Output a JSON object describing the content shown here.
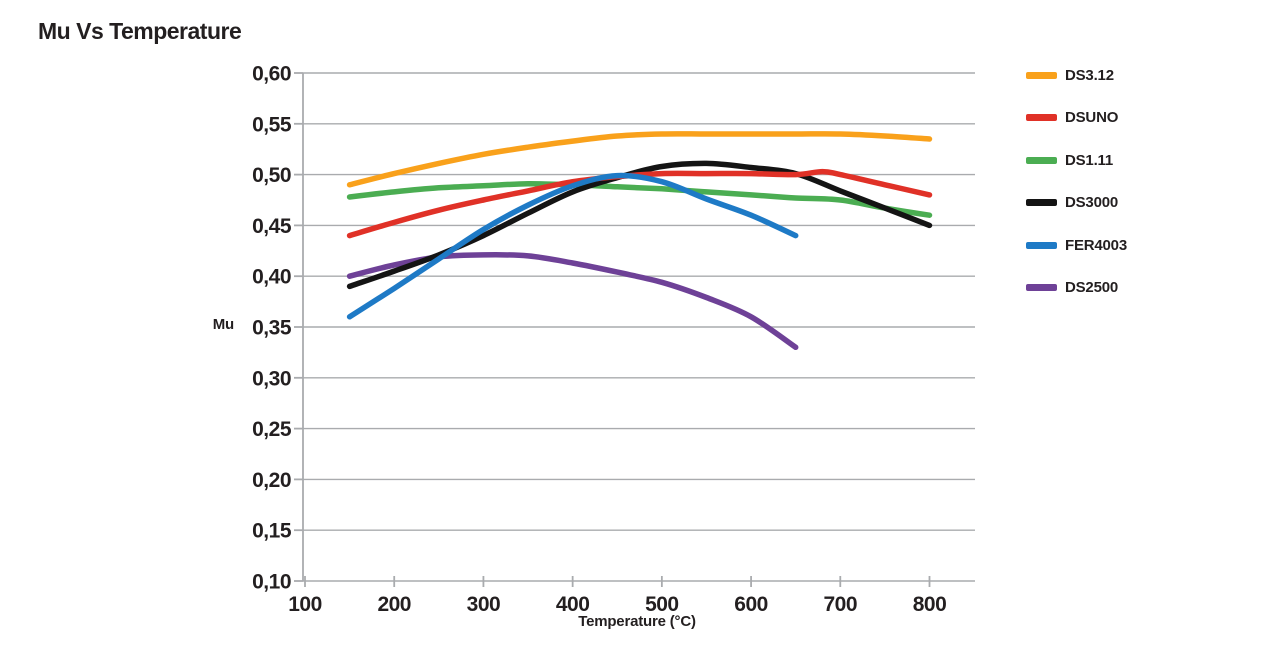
{
  "page": {
    "title": "Mu Vs Temperature"
  },
  "chart_data": {
    "type": "line",
    "title": "Mu Vs Temperature",
    "xlabel": "Temperature (°C)",
    "ylabel": "Mu",
    "xlim": [
      100,
      850
    ],
    "ylim": [
      0.1,
      0.6
    ],
    "grid": true,
    "legend_position": "right",
    "decimal_separator": ",",
    "x_ticks": [
      100,
      200,
      300,
      400,
      500,
      600,
      700,
      800
    ],
    "x_tick_labels": [
      "100",
      "200",
      "300",
      "400",
      "500",
      "600",
      "700",
      "800"
    ],
    "y_ticks": [
      0.6,
      0.55,
      0.5,
      0.45,
      0.4,
      0.35,
      0.3,
      0.25,
      0.2,
      0.15,
      0.1
    ],
    "y_tick_labels": [
      "0,60",
      "0,55",
      "0,50",
      "0,45",
      "0,40",
      "0,35",
      "0,30",
      "0,25",
      "0,20",
      "0,15",
      "0,10"
    ],
    "series": [
      {
        "name": "DS3.12",
        "color": "#F9A11B",
        "z": 1,
        "x": [
          150,
          200,
          250,
          300,
          350,
          400,
          450,
          500,
          550,
          600,
          650,
          700,
          750,
          800
        ],
        "y": [
          0.49,
          0.501,
          0.511,
          0.52,
          0.527,
          0.533,
          0.538,
          0.54,
          0.54,
          0.54,
          0.54,
          0.54,
          0.538,
          0.535
        ]
      },
      {
        "name": "DSUNO",
        "color": "#E03127",
        "z": 5,
        "x": [
          150,
          200,
          250,
          300,
          350,
          400,
          450,
          500,
          550,
          600,
          650,
          680,
          700,
          750,
          800
        ],
        "y": [
          0.44,
          0.453,
          0.465,
          0.475,
          0.484,
          0.493,
          0.498,
          0.501,
          0.501,
          0.501,
          0.5,
          0.503,
          0.5,
          0.49,
          0.48
        ]
      },
      {
        "name": "DS1.11",
        "color": "#4BAD52",
        "z": 2,
        "x": [
          150,
          200,
          250,
          300,
          350,
          400,
          450,
          500,
          550,
          600,
          650,
          700,
          750,
          800
        ],
        "y": [
          0.478,
          0.483,
          0.487,
          0.489,
          0.491,
          0.49,
          0.488,
          0.486,
          0.483,
          0.48,
          0.477,
          0.475,
          0.467,
          0.46
        ]
      },
      {
        "name": "DS3000",
        "color": "#141414",
        "z": 4,
        "x": [
          150,
          200,
          250,
          300,
          350,
          400,
          450,
          500,
          550,
          600,
          650,
          700,
          750,
          800
        ],
        "y": [
          0.39,
          0.405,
          0.421,
          0.44,
          0.462,
          0.483,
          0.497,
          0.508,
          0.511,
          0.507,
          0.501,
          0.484,
          0.467,
          0.45
        ]
      },
      {
        "name": "FER4003",
        "color": "#1E7AC6",
        "z": 6,
        "x": [
          150,
          200,
          250,
          300,
          350,
          400,
          450,
          500,
          550,
          600,
          650
        ],
        "y": [
          0.36,
          0.388,
          0.417,
          0.446,
          0.47,
          0.489,
          0.499,
          0.493,
          0.476,
          0.46,
          0.44
        ]
      },
      {
        "name": "DS2500",
        "color": "#6E4197",
        "z": 3,
        "x": [
          150,
          200,
          250,
          300,
          350,
          400,
          450,
          500,
          550,
          600,
          650
        ],
        "y": [
          0.4,
          0.411,
          0.419,
          0.421,
          0.42,
          0.413,
          0.404,
          0.394,
          0.379,
          0.36,
          0.33
        ]
      }
    ]
  },
  "colors": {
    "background": "#FFFFFF",
    "text": "#231F20",
    "grid": "#A9ABAE"
  }
}
